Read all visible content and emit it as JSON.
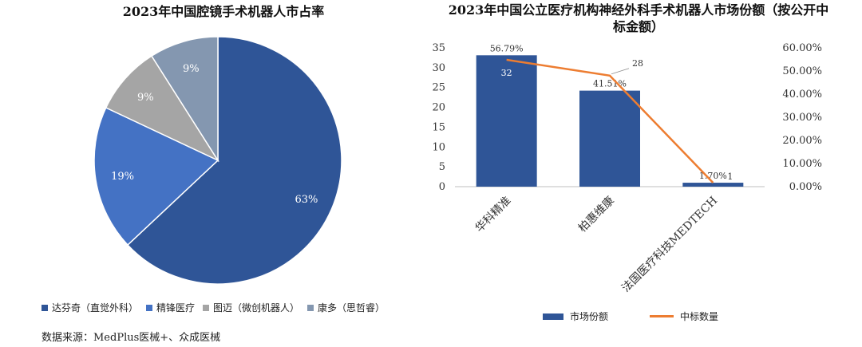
{
  "chart_data": [
    {
      "type": "pie",
      "title": "2023年中国腔镜手术机器人市占率",
      "slices": [
        {
          "name": "达芬奇（直觉外科）",
          "value": 63,
          "label": "63%",
          "color": "#2f5597"
        },
        {
          "name": "精锋医疗",
          "value": 19,
          "label": "19%",
          "color": "#4472c4"
        },
        {
          "name": "图迈（微创机器人）",
          "value": 9,
          "label": "9%",
          "color": "#a5a5a5"
        },
        {
          "name": "康多（思哲睿）",
          "value": 9,
          "label": "9%",
          "color": "#8497b0"
        }
      ],
      "legend_position": "bottom"
    },
    {
      "type": "bar",
      "title": "2023年中国公立医疗机构神经外科手术机器人市场份额（按公开中标金额）",
      "categories": [
        "华科精准",
        "柏惠维康",
        "法国医疗科技MEDTECH"
      ],
      "series": [
        {
          "name": "市场份额",
          "kind": "bar",
          "axis": "right",
          "values": [
            56.79,
            41.51,
            1.7
          ],
          "labels": [
            "56.79%",
            "41.51%",
            "1.70%"
          ],
          "color": "#2f5597"
        },
        {
          "name": "中标数量",
          "kind": "line",
          "axis": "left",
          "values": [
            32,
            28,
            1
          ],
          "labels": [
            "32",
            "28",
            "1"
          ],
          "color": "#ed7d31"
        }
      ],
      "left_axis": {
        "ylim": [
          0,
          35
        ],
        "ticks": [
          "0",
          "5",
          "10",
          "15",
          "20",
          "25",
          "30",
          "35"
        ]
      },
      "right_axis": {
        "ylim": [
          0,
          60
        ],
        "ticks": [
          "0.00%",
          "10.00%",
          "20.00%",
          "30.00%",
          "40.00%",
          "50.00%",
          "60.00%"
        ]
      },
      "grid": false,
      "legend_position": "bottom"
    }
  ],
  "source": "数据来源：MedPlus医械+、众成医械"
}
